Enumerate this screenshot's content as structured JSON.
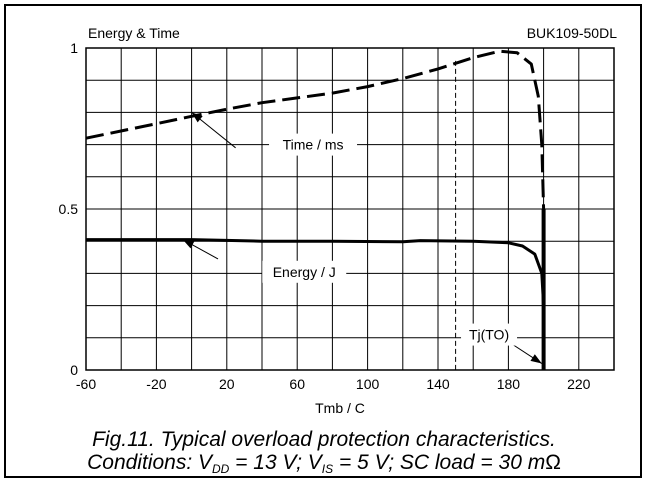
{
  "chart_data": {
    "type": "line",
    "title": "Energy & Time",
    "part_number": "BUK109-50DL",
    "xlabel": "Tmb / C",
    "ylabel": "",
    "xlim": [
      -60,
      240
    ],
    "ylim": [
      0,
      1
    ],
    "x_ticks": [
      "-60",
      "-20",
      "20",
      "60",
      "100",
      "140",
      "180",
      "220"
    ],
    "y_ticks": [
      "0",
      "0.5",
      "1"
    ],
    "grid": true,
    "series": [
      {
        "name": "Time / ms",
        "style": "dashed",
        "points": [
          [
            -60,
            0.72
          ],
          [
            -20,
            0.765
          ],
          [
            0,
            0.788
          ],
          [
            20,
            0.81
          ],
          [
            40,
            0.83
          ],
          [
            60,
            0.845
          ],
          [
            80,
            0.86
          ],
          [
            100,
            0.88
          ],
          [
            120,
            0.905
          ],
          [
            140,
            0.935
          ],
          [
            160,
            0.97
          ],
          [
            175,
            0.99
          ],
          [
            185,
            0.985
          ],
          [
            193,
            0.95
          ],
          [
            197,
            0.85
          ],
          [
            199,
            0.7
          ],
          [
            200,
            0.5
          ],
          [
            200,
            0
          ]
        ]
      },
      {
        "name": "Energy / J",
        "style": "solid",
        "points": [
          [
            -60,
            0.405
          ],
          [
            0,
            0.405
          ],
          [
            40,
            0.4
          ],
          [
            80,
            0.4
          ],
          [
            120,
            0.398
          ],
          [
            130,
            0.402
          ],
          [
            160,
            0.4
          ],
          [
            180,
            0.395
          ],
          [
            188,
            0.385
          ],
          [
            195,
            0.36
          ],
          [
            199,
            0.3
          ],
          [
            200,
            0.2
          ],
          [
            200,
            0
          ]
        ]
      }
    ],
    "reference_lines": [
      {
        "label": "Tj(TO)",
        "x": 200,
        "style": "solid-thick"
      },
      {
        "x": 150,
        "style": "thin-dashed"
      }
    ],
    "annotations": [
      {
        "text": "Time / ms",
        "target_series": "Time / ms",
        "arrow_to": [
          0,
          0.8
        ]
      },
      {
        "text": "Energy / J",
        "target_series": "Energy / J",
        "arrow_to": [
          -5,
          0.405
        ]
      },
      {
        "text": "Tj(TO)",
        "arrow_to": [
          199,
          0.02
        ]
      }
    ]
  },
  "caption": {
    "line1": "Fig.11.   Typical overload protection characteristics.",
    "line2_prefix": "Conditions: V",
    "vdd_sub": "DD",
    "vdd_value": " = 13 V; V",
    "vis_sub": "IS",
    "vis_value": " = 5 V; SC load = 30 m",
    "ohm_symbol": "Ω"
  },
  "colors": {
    "ink": "#000000",
    "background": "#ffffff"
  }
}
